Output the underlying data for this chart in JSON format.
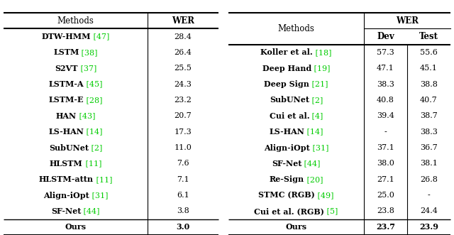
{
  "left_rows": [
    [
      "DTW-HMM",
      "[47]",
      "28.4"
    ],
    [
      "LSTM",
      "[38]",
      "26.4"
    ],
    [
      "S2VT",
      "[37]",
      "25.5"
    ],
    [
      "LSTM-A",
      "[45]",
      "24.3"
    ],
    [
      "LSTM-E",
      "[28]",
      "23.2"
    ],
    [
      "HAN",
      "[43]",
      "20.7"
    ],
    [
      "LS-HAN",
      "[14]",
      "17.3"
    ],
    [
      "SubUNet",
      "[2]",
      "11.0"
    ],
    [
      "HLSTM",
      "[11]",
      "7.6"
    ],
    [
      "HLSTM-attn",
      "[11]",
      "7.1"
    ],
    [
      "Align-iOpt",
      "[31]",
      "6.1"
    ],
    [
      "SF-Net",
      "[44]",
      "3.8"
    ]
  ],
  "left_ours": [
    "Ours",
    "3.0"
  ],
  "right_rows": [
    [
      "Koller et al.",
      "[18]",
      "57.3",
      "55.6"
    ],
    [
      "Deep Hand",
      "[19]",
      "47.1",
      "45.1"
    ],
    [
      "Deep Sign",
      "[21]",
      "38.3",
      "38.8"
    ],
    [
      "SubUNet",
      "[2]",
      "40.8",
      "40.7"
    ],
    [
      "Cui et al.",
      "[4]",
      "39.4",
      "38.7"
    ],
    [
      "LS-HAN",
      "[14]",
      "-",
      "38.3"
    ],
    [
      "Align-iOpt",
      "[31]",
      "37.1",
      "36.7"
    ],
    [
      "SF-Net",
      "[44]",
      "38.0",
      "38.1"
    ],
    [
      "Re-Sign",
      "[20]",
      "27.1",
      "26.8"
    ],
    [
      "STMC (RGB)",
      "[49]",
      "25.0",
      "-"
    ],
    [
      "Cui et al. (RGB)",
      "[5]",
      "23.8",
      "24.4"
    ]
  ],
  "right_ours": [
    "Ours",
    "23.7",
    "23.9"
  ],
  "green": "#00CC00",
  "black": "#000000",
  "white": "#FFFFFF",
  "font_size": 8.0,
  "header_font_size": 8.5
}
